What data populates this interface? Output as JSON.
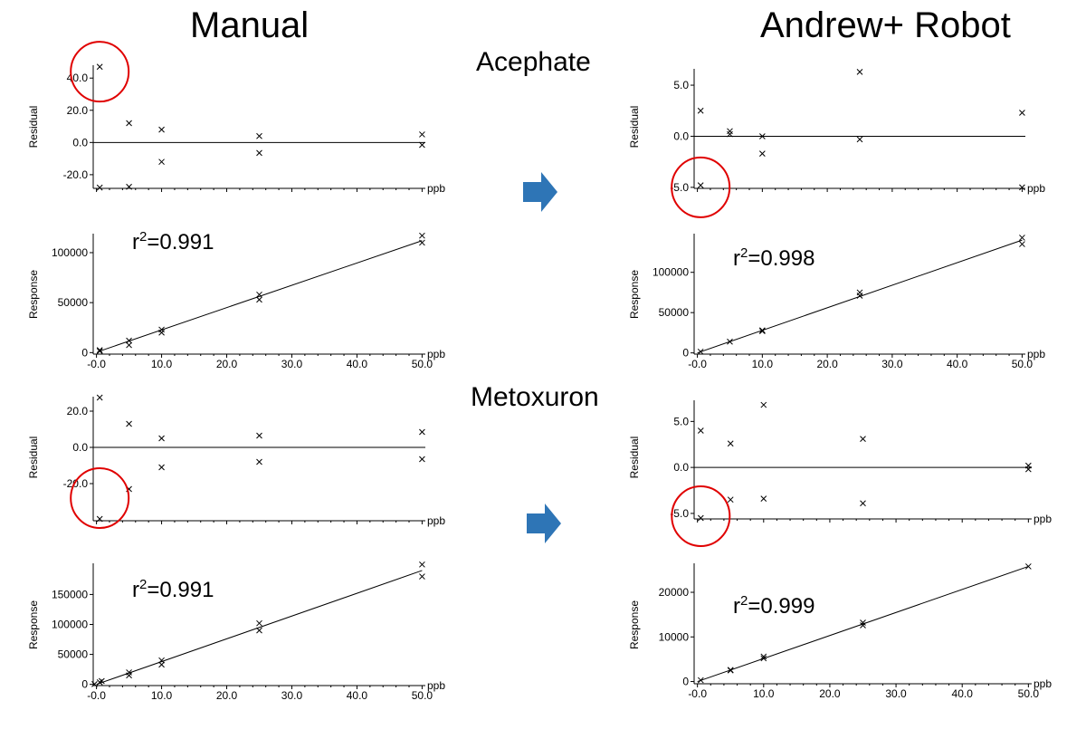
{
  "headings": {
    "manual": "Manual",
    "robot": "Andrew+ Robot",
    "compound_1": "Acephate",
    "compound_2": "Metoxuron"
  },
  "colors": {
    "arrow": "#2e75b6",
    "circle": "#e00000",
    "ink": "#000000"
  },
  "chart_data": [
    {
      "id": "manual-acephate-residual",
      "type": "scatter",
      "ylabel": "Residual",
      "xunit": "ppb",
      "yticks": [
        "40.0",
        "20.0",
        "0.0",
        "-20.0"
      ],
      "ytick_values": [
        40,
        20,
        0,
        -20
      ],
      "ylim": [
        -28.5,
        48
      ],
      "xlim": [
        -0.5,
        50.5
      ],
      "zero_line": true,
      "points": [
        [
          0.5,
          47
        ],
        [
          0.5,
          -28
        ],
        [
          5,
          12
        ],
        [
          5,
          -27.5
        ],
        [
          10,
          8
        ],
        [
          10,
          -12
        ],
        [
          25,
          4
        ],
        [
          25,
          -6.5
        ],
        [
          50,
          5
        ],
        [
          50,
          -1.5
        ]
      ],
      "highlight": {
        "x": 0.5,
        "y": 44
      }
    },
    {
      "id": "manual-acephate-response",
      "type": "scatter",
      "ylabel": "Response",
      "xunit": "ppb",
      "r2": "0.991",
      "yticks": [
        "100000",
        "50000",
        "0"
      ],
      "ytick_values": [
        100000,
        50000,
        0
      ],
      "ylim": [
        -1500,
        119000
      ],
      "xlim": [
        -0.5,
        50.5
      ],
      "xticks": [
        "-0.0",
        "10.0",
        "20.0",
        "30.0",
        "40.0",
        "50.0"
      ],
      "xtick_values": [
        0,
        10,
        20,
        30,
        40,
        50
      ],
      "fit_line": [
        [
          0.5,
          1500
        ],
        [
          50,
          112000
        ]
      ],
      "points": [
        [
          0.5,
          1500
        ],
        [
          0.5,
          2500
        ],
        [
          5,
          12000
        ],
        [
          5,
          7500
        ],
        [
          10,
          23000
        ],
        [
          10,
          20000
        ],
        [
          25,
          58000
        ],
        [
          25,
          53000
        ],
        [
          50,
          117000
        ],
        [
          50,
          110000
        ]
      ]
    },
    {
      "id": "robot-acephate-residual",
      "type": "scatter",
      "ylabel": "Residual",
      "xunit": "ppb",
      "yticks": [
        "5.0",
        "0.0",
        "-5.0"
      ],
      "ytick_values": [
        5,
        0,
        -5
      ],
      "ylim": [
        -5.1,
        6.6
      ],
      "xlim": [
        -0.5,
        50.5
      ],
      "zero_line": true,
      "points": [
        [
          0.5,
          2.5
        ],
        [
          0.5,
          -4.8
        ],
        [
          5,
          0.5
        ],
        [
          5,
          0.2
        ],
        [
          10,
          0
        ],
        [
          10,
          -1.7
        ],
        [
          25,
          6.3
        ],
        [
          25,
          -0.3
        ],
        [
          50,
          2.3
        ],
        [
          50,
          -5
        ]
      ],
      "highlight": {
        "x": 0.5,
        "y": -5
      }
    },
    {
      "id": "robot-acephate-response",
      "type": "scatter",
      "ylabel": "Response",
      "xunit": "ppb",
      "r2": "0.998",
      "yticks": [
        "100000",
        "50000",
        "0"
      ],
      "ytick_values": [
        100000,
        50000,
        0
      ],
      "ylim": [
        -1500,
        148000
      ],
      "xlim": [
        -0.5,
        50.5
      ],
      "xticks": [
        "-0.0",
        "10.0",
        "20.0",
        "30.0",
        "40.0",
        "50.0"
      ],
      "xtick_values": [
        0,
        10,
        20,
        30,
        40,
        50
      ],
      "fit_line": [
        [
          0,
          0
        ],
        [
          50,
          140000
        ]
      ],
      "points": [
        [
          0.5,
          1500
        ],
        [
          5,
          14000
        ],
        [
          10,
          28000
        ],
        [
          10,
          27000
        ],
        [
          25,
          75000
        ],
        [
          25,
          71000
        ],
        [
          50,
          143000
        ],
        [
          50,
          135000
        ]
      ]
    },
    {
      "id": "manual-metoxuron-residual",
      "type": "scatter",
      "ylabel": "Residual",
      "xunit": "ppb",
      "yticks": [
        "20.0",
        "0.0",
        "-20.0"
      ],
      "ytick_values": [
        20,
        0,
        -20
      ],
      "ylim": [
        -40.5,
        28
      ],
      "xlim": [
        -0.5,
        50.5
      ],
      "zero_line": true,
      "points": [
        [
          0.5,
          27.5
        ],
        [
          0.5,
          -39.5
        ],
        [
          5,
          13
        ],
        [
          5,
          -23
        ],
        [
          10,
          5
        ],
        [
          10,
          -11
        ],
        [
          25,
          6.5
        ],
        [
          25,
          -8
        ],
        [
          50,
          8.5
        ],
        [
          50,
          -6.5
        ]
      ],
      "highlight": {
        "x": 0.5,
        "y": -28
      }
    },
    {
      "id": "manual-metoxuron-response",
      "type": "scatter",
      "ylabel": "Response",
      "xunit": "ppb",
      "r2": "0.991",
      "yticks": [
        "150000",
        "100000",
        "50000",
        "0"
      ],
      "ytick_values": [
        150000,
        100000,
        50000,
        0
      ],
      "ylim": [
        -2000,
        202000
      ],
      "xlim": [
        -0.5,
        50.5
      ],
      "xticks": [
        "-0.0",
        "10.0",
        "20.0",
        "30.0",
        "40.0",
        "50.0"
      ],
      "xtick_values": [
        0,
        10,
        20,
        30,
        40,
        50
      ],
      "fit_line": [
        [
          0,
          0
        ],
        [
          50,
          190000
        ]
      ],
      "points": [
        [
          -0.3,
          500
        ],
        [
          0.5,
          3500
        ],
        [
          0.8,
          5500
        ],
        [
          5,
          20000
        ],
        [
          5,
          15000
        ],
        [
          10,
          40000
        ],
        [
          10,
          33000
        ],
        [
          25,
          102000
        ],
        [
          25,
          90000
        ],
        [
          50,
          200000
        ],
        [
          50,
          180000
        ]
      ]
    },
    {
      "id": "robot-metoxuron-residual",
      "type": "scatter",
      "ylabel": "Residual",
      "xunit": "ppb",
      "yticks": [
        "5.0",
        "0.0",
        "-5.0"
      ],
      "ytick_values": [
        5,
        0,
        -5
      ],
      "ylim": [
        -5.6,
        7.3
      ],
      "xlim": [
        -0.5,
        50.5
      ],
      "zero_line": true,
      "points": [
        [
          0.5,
          4
        ],
        [
          0.5,
          -5.5
        ],
        [
          5,
          2.6
        ],
        [
          5,
          -3.5
        ],
        [
          10,
          6.8
        ],
        [
          10,
          -3.4
        ],
        [
          25,
          3.1
        ],
        [
          25,
          -3.9
        ],
        [
          50,
          0.2
        ],
        [
          50,
          -0.2
        ]
      ],
      "highlight": {
        "x": 0.5,
        "y": -5.3
      }
    },
    {
      "id": "robot-metoxuron-response",
      "type": "scatter",
      "ylabel": "Response",
      "xunit": "ppb",
      "r2": "0.999",
      "yticks": [
        "20000",
        "10000",
        "0"
      ],
      "ytick_values": [
        20000,
        10000,
        0
      ],
      "ylim": [
        -500,
        26500
      ],
      "xlim": [
        -0.5,
        50.5
      ],
      "xticks": [
        "-0.0",
        "10.0",
        "20.0",
        "30.0",
        "40.0",
        "50.0"
      ],
      "xtick_values": [
        0,
        10,
        20,
        30,
        40,
        50
      ],
      "fit_line": [
        [
          0,
          0
        ],
        [
          50,
          25800
        ]
      ],
      "points": [
        [
          0.5,
          300
        ],
        [
          5,
          2600
        ],
        [
          5,
          2500
        ],
        [
          10,
          5600
        ],
        [
          10,
          5200
        ],
        [
          25,
          13200
        ],
        [
          25,
          12600
        ],
        [
          50,
          25800
        ]
      ]
    }
  ]
}
